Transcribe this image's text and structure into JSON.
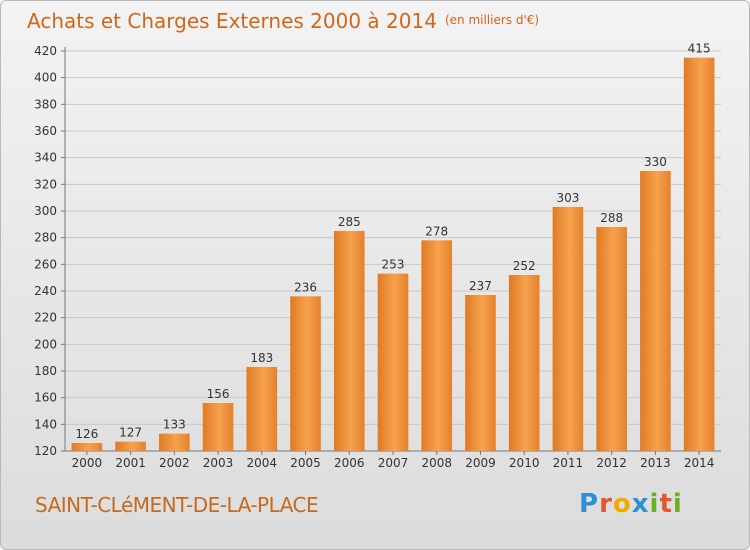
{
  "header": {
    "title": "Achats et Charges Externes 2000 à 2014",
    "unit": "(en milliers d'€)"
  },
  "footer": {
    "commune": "SAINT-CLéMENT-DE-LA-PLACE",
    "brand_letters": [
      {
        "char": "P",
        "color": "#2f8fd0"
      },
      {
        "char": "r",
        "color": "#e4572e"
      },
      {
        "char": "o",
        "color": "#f2a900"
      },
      {
        "char": "x",
        "color": "#2f8fd0"
      },
      {
        "char": "i",
        "color": "#6ab023"
      },
      {
        "char": "t",
        "color": "#e4572e"
      },
      {
        "char": "i",
        "color": "#6ab023"
      }
    ]
  },
  "chart_data": {
    "type": "bar",
    "title": "Achats et Charges Externes 2000 à 2014",
    "ylabel": "",
    "xlabel": "",
    "ylim": [
      120,
      420
    ],
    "yticks": [
      120,
      140,
      160,
      180,
      200,
      220,
      240,
      260,
      280,
      300,
      320,
      340,
      360,
      380,
      400,
      420
    ],
    "grid": true,
    "categories": [
      "2000",
      "2001",
      "2002",
      "2003",
      "2004",
      "2005",
      "2006",
      "2007",
      "2008",
      "2009",
      "2010",
      "2011",
      "2012",
      "2013",
      "2014"
    ],
    "values": [
      126,
      127,
      133,
      156,
      183,
      236,
      285,
      253,
      278,
      237,
      252,
      303,
      288,
      330,
      415
    ],
    "bar_color": "#f0913a"
  }
}
